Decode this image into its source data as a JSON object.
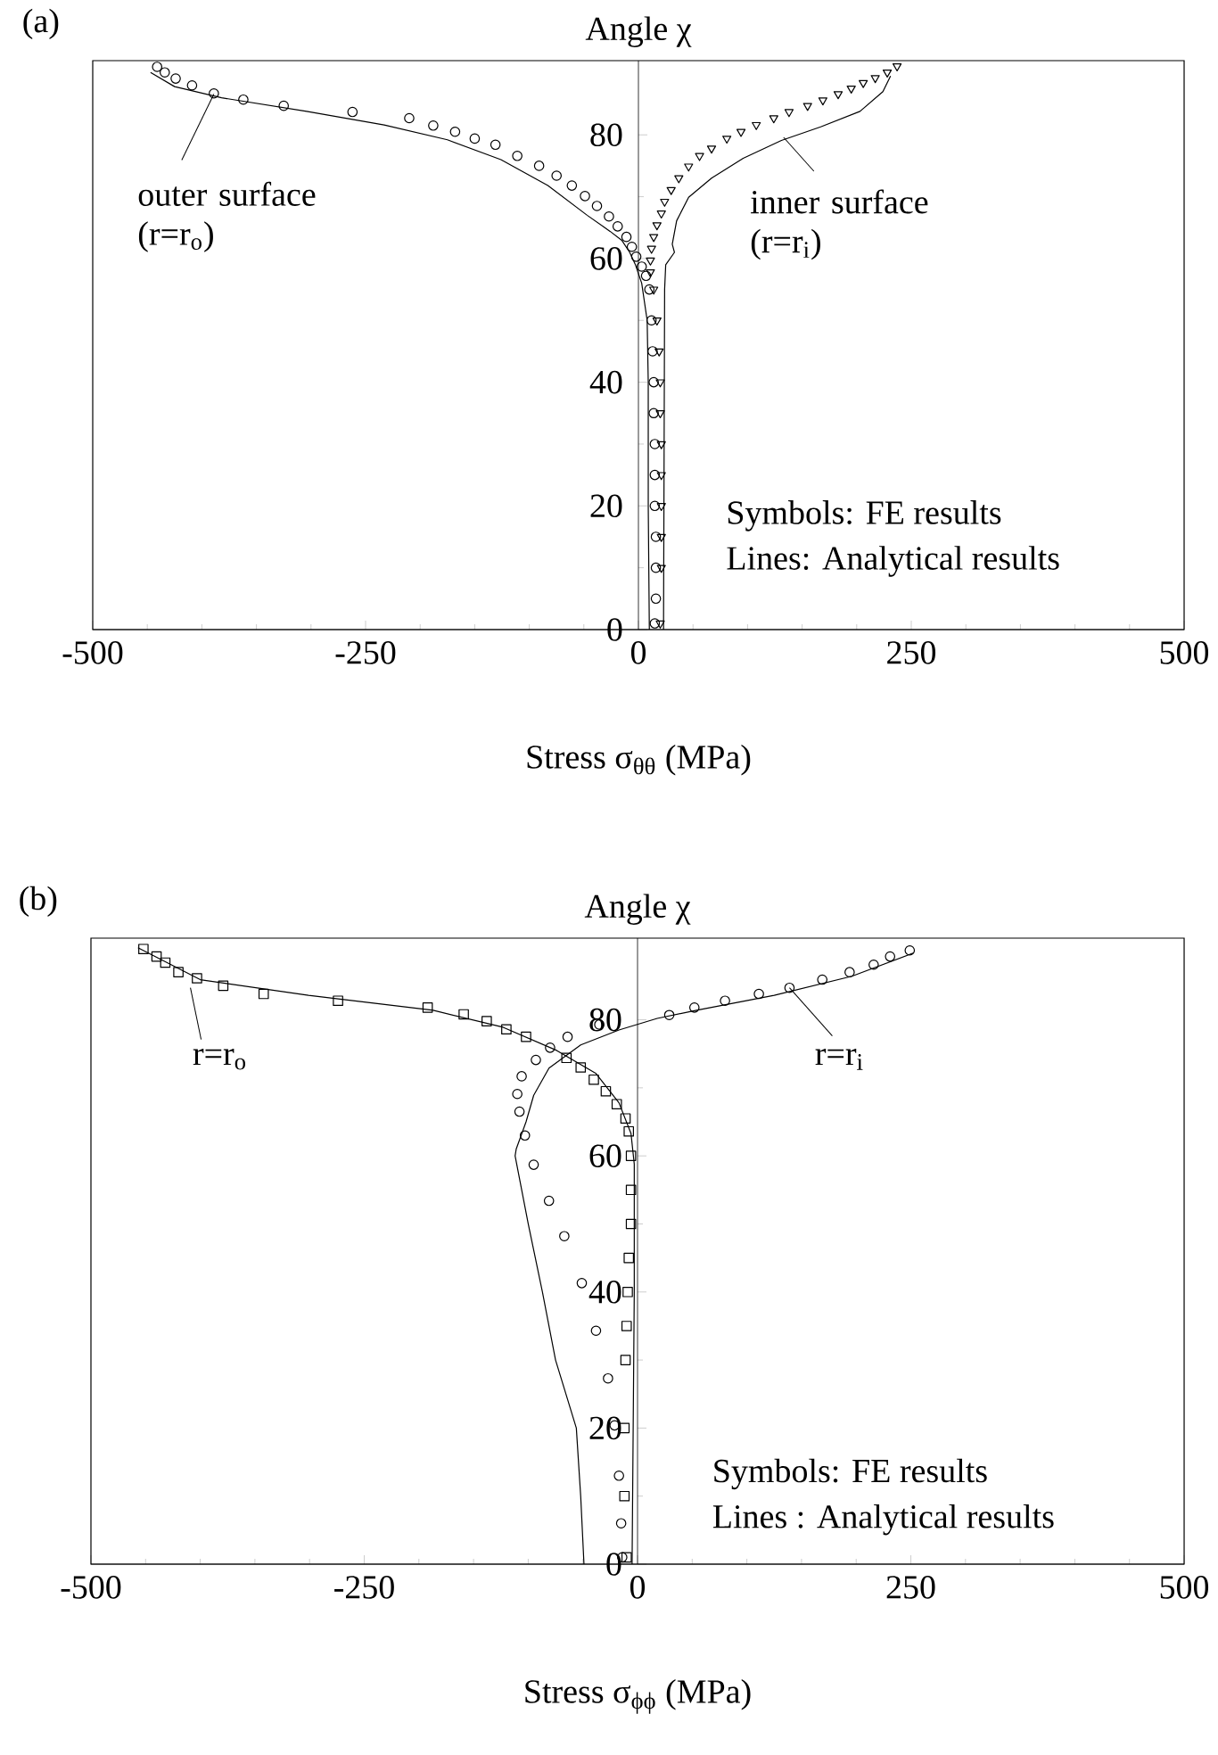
{
  "chart_data": [
    {
      "type": "line",
      "title": "(a)",
      "xlabel": "Stress  σ$_{θθ}$ (MPa)",
      "ylabel": "Angle χ",
      "xlim": [
        -500,
        500
      ],
      "ylim": [
        0,
        92
      ],
      "xticks": [
        -500,
        -250,
        0,
        250,
        500
      ],
      "yticks": [
        0,
        20,
        40,
        60,
        80
      ],
      "grid": false,
      "series": [
        {
          "type": "scatter",
          "marker": "circle",
          "color": "#000000",
          "x": [
            -441,
            -434,
            -424,
            -409,
            -389,
            -362,
            -325,
            -262,
            -210,
            -188,
            -168,
            -150,
            -131,
            -111,
            -91,
            -75,
            -61,
            -49,
            -38,
            -27,
            -19,
            -11,
            -6,
            -2,
            3,
            7,
            10,
            12,
            13,
            14,
            14,
            15,
            15,
            15,
            16,
            16,
            16,
            15
          ],
          "values": [
            91,
            90.1,
            89.1,
            88,
            86.7,
            85.7,
            84.7,
            83.7,
            82.7,
            81.5,
            80.5,
            79.4,
            78.4,
            76.6,
            75,
            73.4,
            71.8,
            70.1,
            68.5,
            66.8,
            65.2,
            63.5,
            61.9,
            60.3,
            58.7,
            57.2,
            55,
            50,
            45,
            40,
            35,
            30,
            25,
            20,
            15,
            10,
            5,
            1
          ]
        },
        {
          "type": "scatter",
          "marker": "triangle",
          "color": "#000000",
          "x": [
            237,
            228,
            217,
            206,
            195,
            183,
            169,
            155,
            138,
            124,
            108,
            94,
            81,
            67,
            56,
            46,
            37,
            30,
            24,
            21,
            17,
            14,
            12,
            11,
            11,
            14,
            17,
            19,
            20,
            20,
            21,
            21,
            21,
            21,
            21,
            20
          ],
          "values": [
            91.1,
            90.1,
            89.2,
            88.4,
            87.5,
            86.6,
            85.6,
            84.7,
            83.7,
            82.7,
            81.6,
            80.5,
            79.4,
            77.8,
            76.6,
            74.9,
            73,
            71.1,
            69.2,
            67.3,
            65.4,
            63.5,
            61.6,
            59.7,
            57.8,
            55,
            50,
            45,
            40,
            35,
            30,
            25,
            20,
            15,
            10,
            1
          ]
        },
        {
          "type": "line",
          "marker": "none",
          "line_style": "solid",
          "color": "#000000",
          "x": [
            -447,
            -425,
            -382,
            -304,
            -233,
            -175,
            -126,
            -83,
            -47,
            -26,
            -15,
            -8,
            -3,
            3,
            8,
            9,
            9,
            10
          ],
          "values": [
            90.1,
            87.8,
            86,
            83.8,
            81.6,
            79.2,
            76,
            71.8,
            67,
            64.4,
            62.9,
            61,
            59.1,
            56,
            50,
            40,
            20,
            0
          ]
        },
        {
          "type": "line",
          "marker": "none",
          "line_style": "solid",
          "color": "#000000",
          "x": [
            231,
            224,
            203,
            167,
            131,
            96,
            67,
            46,
            35,
            31,
            33,
            25,
            24,
            23
          ],
          "values": [
            89.5,
            87,
            83.8,
            81.3,
            79.1,
            76.2,
            73,
            69.9,
            66.1,
            62.3,
            61,
            59,
            55,
            0
          ]
        }
      ],
      "annotations": [
        {
          "text": "outer surface (r=r$_{o}$)",
          "x": -389,
          "y": 86.6
        },
        {
          "text": "inner surface (r=r$_{i}$)",
          "x": 133,
          "y": 79.6
        },
        "Symbols: FE results",
        "Lines: Analytical results"
      ]
    },
    {
      "type": "line",
      "title": "(b)",
      "xlabel": "Stress  σ$_{ϕϕ}$ (MPa)",
      "ylabel": "Angle χ",
      "xlim": [
        -500,
        500
      ],
      "ylim": [
        0,
        92
      ],
      "xticks": [
        -500,
        -250,
        0,
        250,
        500
      ],
      "yticks": [
        0,
        20,
        40,
        60,
        80
      ],
      "grid": false,
      "series": [
        {
          "type": "scatter",
          "marker": "square",
          "color": "#000000",
          "x": [
            -452,
            -440,
            -432,
            -420,
            -403,
            -379,
            -342,
            -274,
            -192,
            -159,
            -138,
            -120,
            -102,
            -65,
            -52,
            -40,
            -29,
            -19,
            -11,
            -8,
            -6,
            -6,
            -6,
            -8,
            -9,
            -10,
            -11,
            -12,
            -12,
            -10
          ],
          "values": [
            90.4,
            89.3,
            88.4,
            87,
            86.1,
            85,
            83.8,
            82.8,
            81.8,
            80.8,
            79.8,
            78.6,
            77.5,
            74.4,
            73,
            71.2,
            69.5,
            67.6,
            65.5,
            63.6,
            60,
            55,
            50,
            45,
            40,
            35,
            30,
            20,
            10,
            1
          ]
        },
        {
          "type": "scatter",
          "marker": "circle",
          "color": "#000000",
          "x": [
            249,
            231,
            216,
            194,
            169,
            139,
            111,
            80,
            52,
            29,
            -35,
            -64,
            -80,
            -93,
            -106,
            -110,
            -108,
            -103,
            -95,
            -81,
            -67,
            -51,
            -38,
            -27,
            -21,
            -17,
            -15,
            -14
          ],
          "values": [
            90.2,
            89.3,
            88.1,
            87,
            85.9,
            84.7,
            83.8,
            82.8,
            81.8,
            80.7,
            79.3,
            77.5,
            75.9,
            74.1,
            71.7,
            69.1,
            66.5,
            63,
            58.7,
            53.4,
            48.2,
            41.3,
            34.3,
            27.3,
            20.4,
            13,
            6,
            1
          ]
        },
        {
          "type": "line",
          "marker": "none",
          "line_style": "solid",
          "color": "#000000",
          "x": [
            -457,
            -400,
            -301,
            -187,
            -123,
            -74,
            -38,
            -17,
            -6,
            -3,
            -3,
            -4,
            -5
          ],
          "values": [
            90.6,
            85.9,
            83.6,
            81.4,
            78.9,
            75.5,
            72.1,
            67.8,
            63.3,
            58.8,
            40,
            20,
            0
          ]
        },
        {
          "type": "line",
          "marker": "none",
          "line_style": "solid",
          "color": "#000000",
          "x": [
            252,
            196,
            125,
            54,
            18,
            -17,
            -52,
            -81,
            -95,
            -102,
            -111,
            -112,
            -100,
            -87,
            -75,
            -56,
            -52,
            -49
          ],
          "values": [
            89.8,
            86.4,
            83.6,
            81.4,
            80.2,
            78.5,
            76.3,
            72.9,
            68.9,
            65,
            61,
            60,
            50,
            40,
            30,
            20,
            10,
            0
          ]
        }
      ],
      "annotations": [
        {
          "text": "r=r$_{o}$",
          "x": -409,
          "y": 84.7
        },
        {
          "text": "r=r$_{i}$",
          "x": 139,
          "y": 84.7
        },
        "Symbols: FE results",
        "Lines  : Analytical results"
      ]
    }
  ]
}
